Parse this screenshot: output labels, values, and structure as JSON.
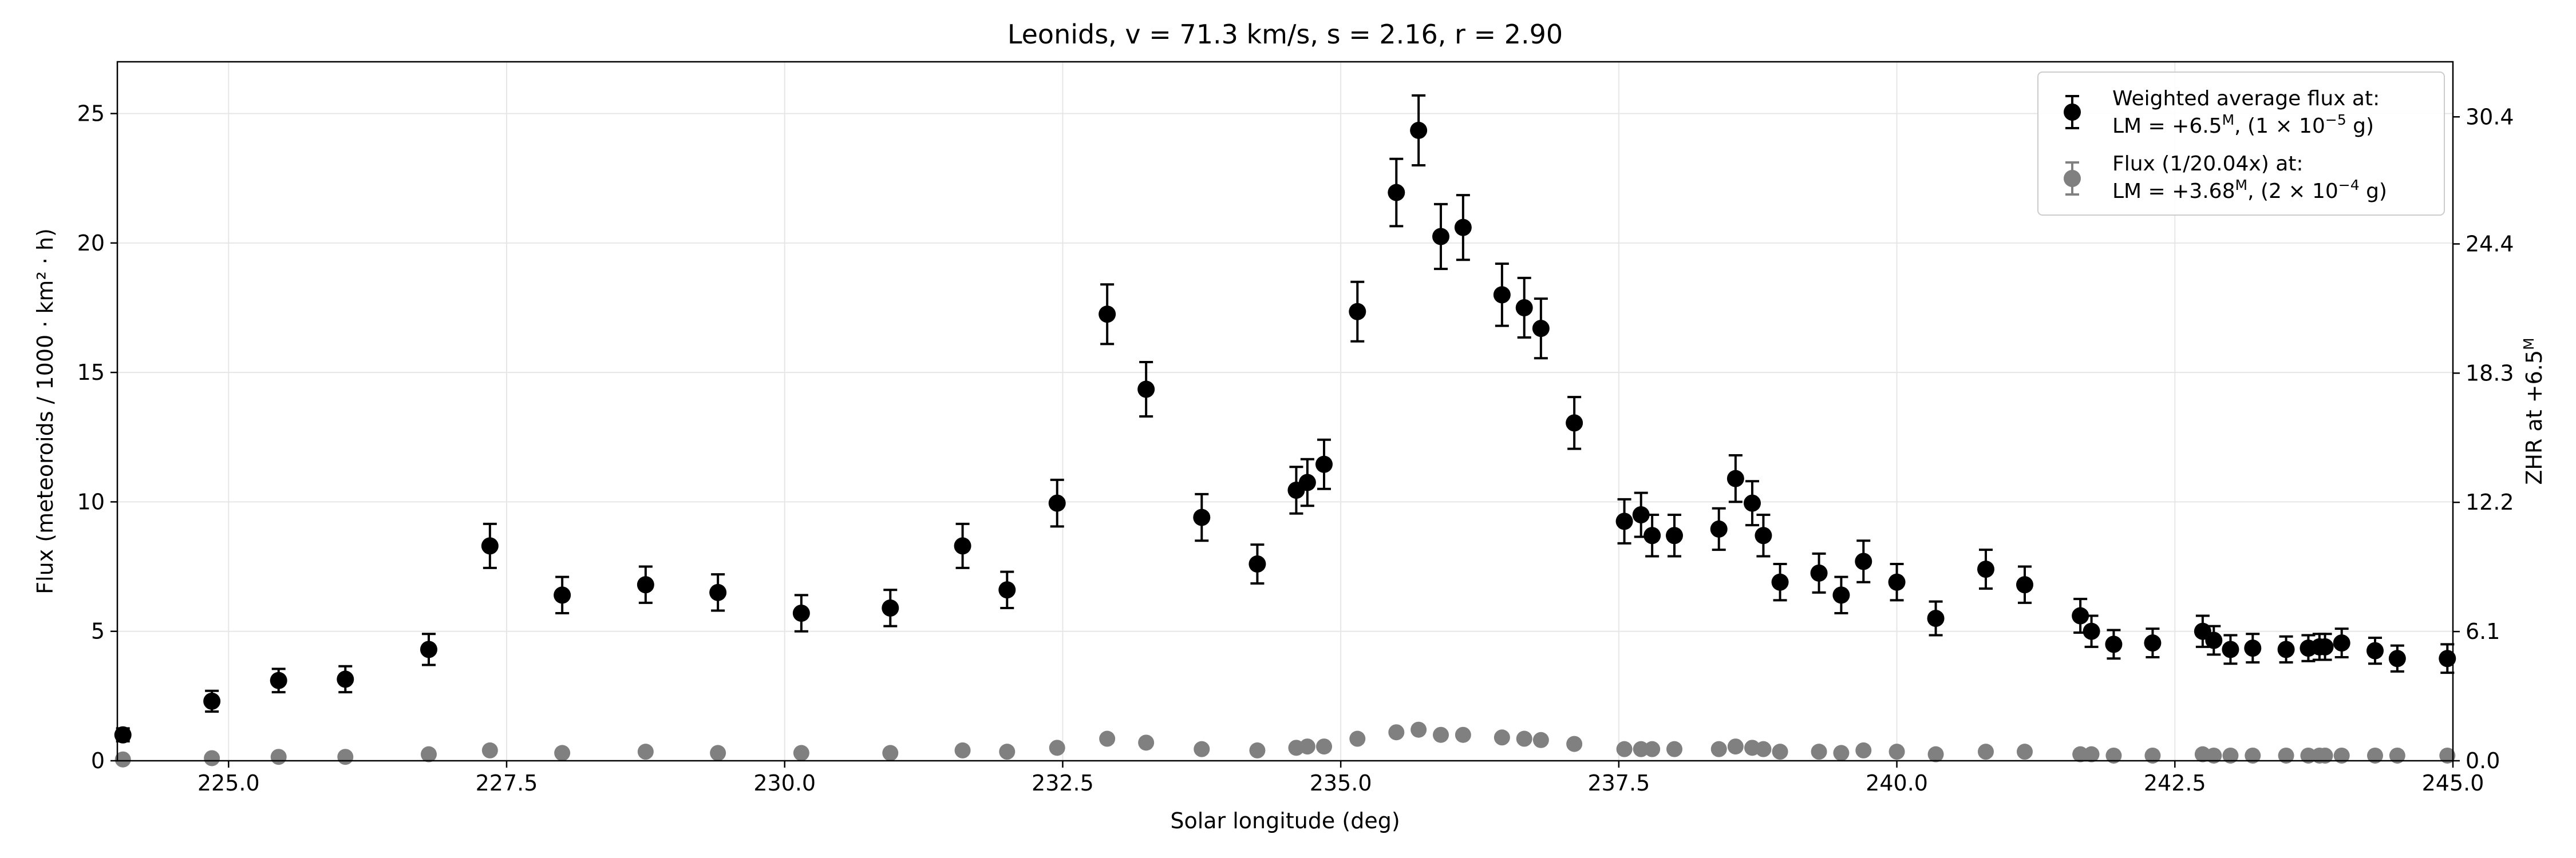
{
  "chart_data": {
    "type": "scatter",
    "title": "Leonids, v = 71.3 km/s, s = 2.16, r = 2.90",
    "xlabel": "Solar longitude (deg)",
    "ylabel": "Flux (meteoroids / 1000 · km² · h)",
    "ylabel_right": "ZHR at +6.5",
    "ylabel_right_sup": "M",
    "xlim": [
      224.0,
      245.0
    ],
    "ylim": [
      0,
      27
    ],
    "ylim_right": [
      0,
      33.0
    ],
    "grid": true,
    "x_ticks": [
      225.0,
      227.5,
      230.0,
      232.5,
      235.0,
      237.5,
      240.0,
      242.5,
      245.0
    ],
    "x_tick_labels": [
      "225.0",
      "227.5",
      "230.0",
      "232.5",
      "235.0",
      "237.5",
      "240.0",
      "242.5",
      "245.0"
    ],
    "y_ticks": [
      0,
      5,
      10,
      15,
      20,
      25
    ],
    "y_tick_labels": [
      "0",
      "5",
      "10",
      "15",
      "20",
      "25"
    ],
    "y_right_ticks": [
      0.0,
      6.1,
      12.2,
      18.3,
      24.4,
      30.4
    ],
    "y_right_tick_labels": [
      "0.0",
      "6.1",
      "12.2",
      "18.3",
      "24.4",
      "30.4"
    ],
    "legend": {
      "position": "top-right",
      "entries": [
        {
          "series": "Weighted average flux",
          "line1": "Weighted average flux at:",
          "line2_prefix": "LM = +6.5",
          "line2_sup": "M",
          "line2_suffix": ", (1 × 10",
          "line2_exp": "−5",
          "line2_end": " g)"
        },
        {
          "series": "Flux (1/20.04x)",
          "line1": "Flux (1/20.04x) at:",
          "line2_prefix": "LM = +3.68",
          "line2_sup": "M",
          "line2_suffix": ", (2 × 10",
          "line2_exp": "−4",
          "line2_end": " g)"
        }
      ]
    },
    "series": [
      {
        "name": "Weighted average flux",
        "color": "#000000",
        "has_error_bars": true,
        "x": [
          224.05,
          224.85,
          225.45,
          226.05,
          226.8,
          227.35,
          228.0,
          228.75,
          229.4,
          230.15,
          230.95,
          231.6,
          232.0,
          232.45,
          232.9,
          233.25,
          233.75,
          234.25,
          234.6,
          234.7,
          234.85,
          235.15,
          235.5,
          235.7,
          235.9,
          236.1,
          236.45,
          236.65,
          236.8,
          237.1,
          237.55,
          237.7,
          237.8,
          238.0,
          238.4,
          238.55,
          238.7,
          238.8,
          238.95,
          239.3,
          239.5,
          239.7,
          240.0,
          240.35,
          240.8,
          241.15,
          241.65,
          241.75,
          241.95,
          242.3,
          242.75,
          242.85,
          243.0,
          243.2,
          243.5,
          243.7,
          243.8,
          243.85,
          244.0,
          244.3,
          244.5,
          244.95
        ],
        "y": [
          1.0,
          2.3,
          3.1,
          3.15,
          4.3,
          8.3,
          6.4,
          6.8,
          6.5,
          5.7,
          5.9,
          8.3,
          6.6,
          9.95,
          17.25,
          14.35,
          9.4,
          7.6,
          10.45,
          10.75,
          11.45,
          17.35,
          21.95,
          24.35,
          20.25,
          20.6,
          18.0,
          17.5,
          16.7,
          13.05,
          9.25,
          9.5,
          8.7,
          8.7,
          8.95,
          10.9,
          9.95,
          8.7,
          6.9,
          7.25,
          6.4,
          7.7,
          6.9,
          5.5,
          7.4,
          6.8,
          5.6,
          5.0,
          4.5,
          4.55,
          5.0,
          4.65,
          4.3,
          4.35,
          4.3,
          4.35,
          4.4,
          4.4,
          4.55,
          4.25,
          3.95,
          3.95
        ],
        "err": [
          0.25,
          0.4,
          0.45,
          0.5,
          0.6,
          0.85,
          0.7,
          0.7,
          0.7,
          0.7,
          0.7,
          0.85,
          0.7,
          0.9,
          1.15,
          1.05,
          0.9,
          0.75,
          0.9,
          0.9,
          0.95,
          1.15,
          1.3,
          1.35,
          1.25,
          1.25,
          1.2,
          1.15,
          1.15,
          1.0,
          0.85,
          0.85,
          0.8,
          0.8,
          0.8,
          0.9,
          0.85,
          0.8,
          0.7,
          0.75,
          0.7,
          0.8,
          0.7,
          0.65,
          0.75,
          0.7,
          0.65,
          0.6,
          0.55,
          0.55,
          0.6,
          0.55,
          0.55,
          0.55,
          0.5,
          0.5,
          0.5,
          0.5,
          0.55,
          0.5,
          0.5,
          0.55
        ]
      },
      {
        "name": "Flux (1/20.04x)",
        "color": "#808080",
        "has_error_bars": false,
        "x": [
          224.05,
          224.85,
          225.45,
          226.05,
          226.8,
          227.35,
          228.0,
          228.75,
          229.4,
          230.15,
          230.95,
          231.6,
          232.0,
          232.45,
          232.9,
          233.25,
          233.75,
          234.25,
          234.6,
          234.7,
          234.85,
          235.15,
          235.5,
          235.7,
          235.9,
          236.1,
          236.45,
          236.65,
          236.8,
          237.1,
          237.55,
          237.7,
          237.8,
          238.0,
          238.4,
          238.55,
          238.7,
          238.8,
          238.95,
          239.3,
          239.5,
          239.7,
          240.0,
          240.35,
          240.8,
          241.15,
          241.65,
          241.75,
          241.95,
          242.3,
          242.75,
          242.85,
          243.0,
          243.2,
          243.5,
          243.7,
          243.8,
          243.85,
          244.0,
          244.3,
          244.5,
          244.95
        ],
        "y": [
          0.05,
          0.1,
          0.15,
          0.15,
          0.25,
          0.4,
          0.3,
          0.35,
          0.3,
          0.3,
          0.3,
          0.4,
          0.35,
          0.5,
          0.85,
          0.7,
          0.45,
          0.4,
          0.5,
          0.55,
          0.55,
          0.85,
          1.1,
          1.2,
          1.0,
          1.0,
          0.9,
          0.85,
          0.8,
          0.65,
          0.45,
          0.45,
          0.45,
          0.45,
          0.45,
          0.55,
          0.5,
          0.45,
          0.35,
          0.35,
          0.3,
          0.4,
          0.35,
          0.25,
          0.35,
          0.35,
          0.25,
          0.25,
          0.2,
          0.2,
          0.25,
          0.2,
          0.2,
          0.2,
          0.2,
          0.2,
          0.2,
          0.2,
          0.2,
          0.2,
          0.2,
          0.2
        ]
      }
    ]
  }
}
